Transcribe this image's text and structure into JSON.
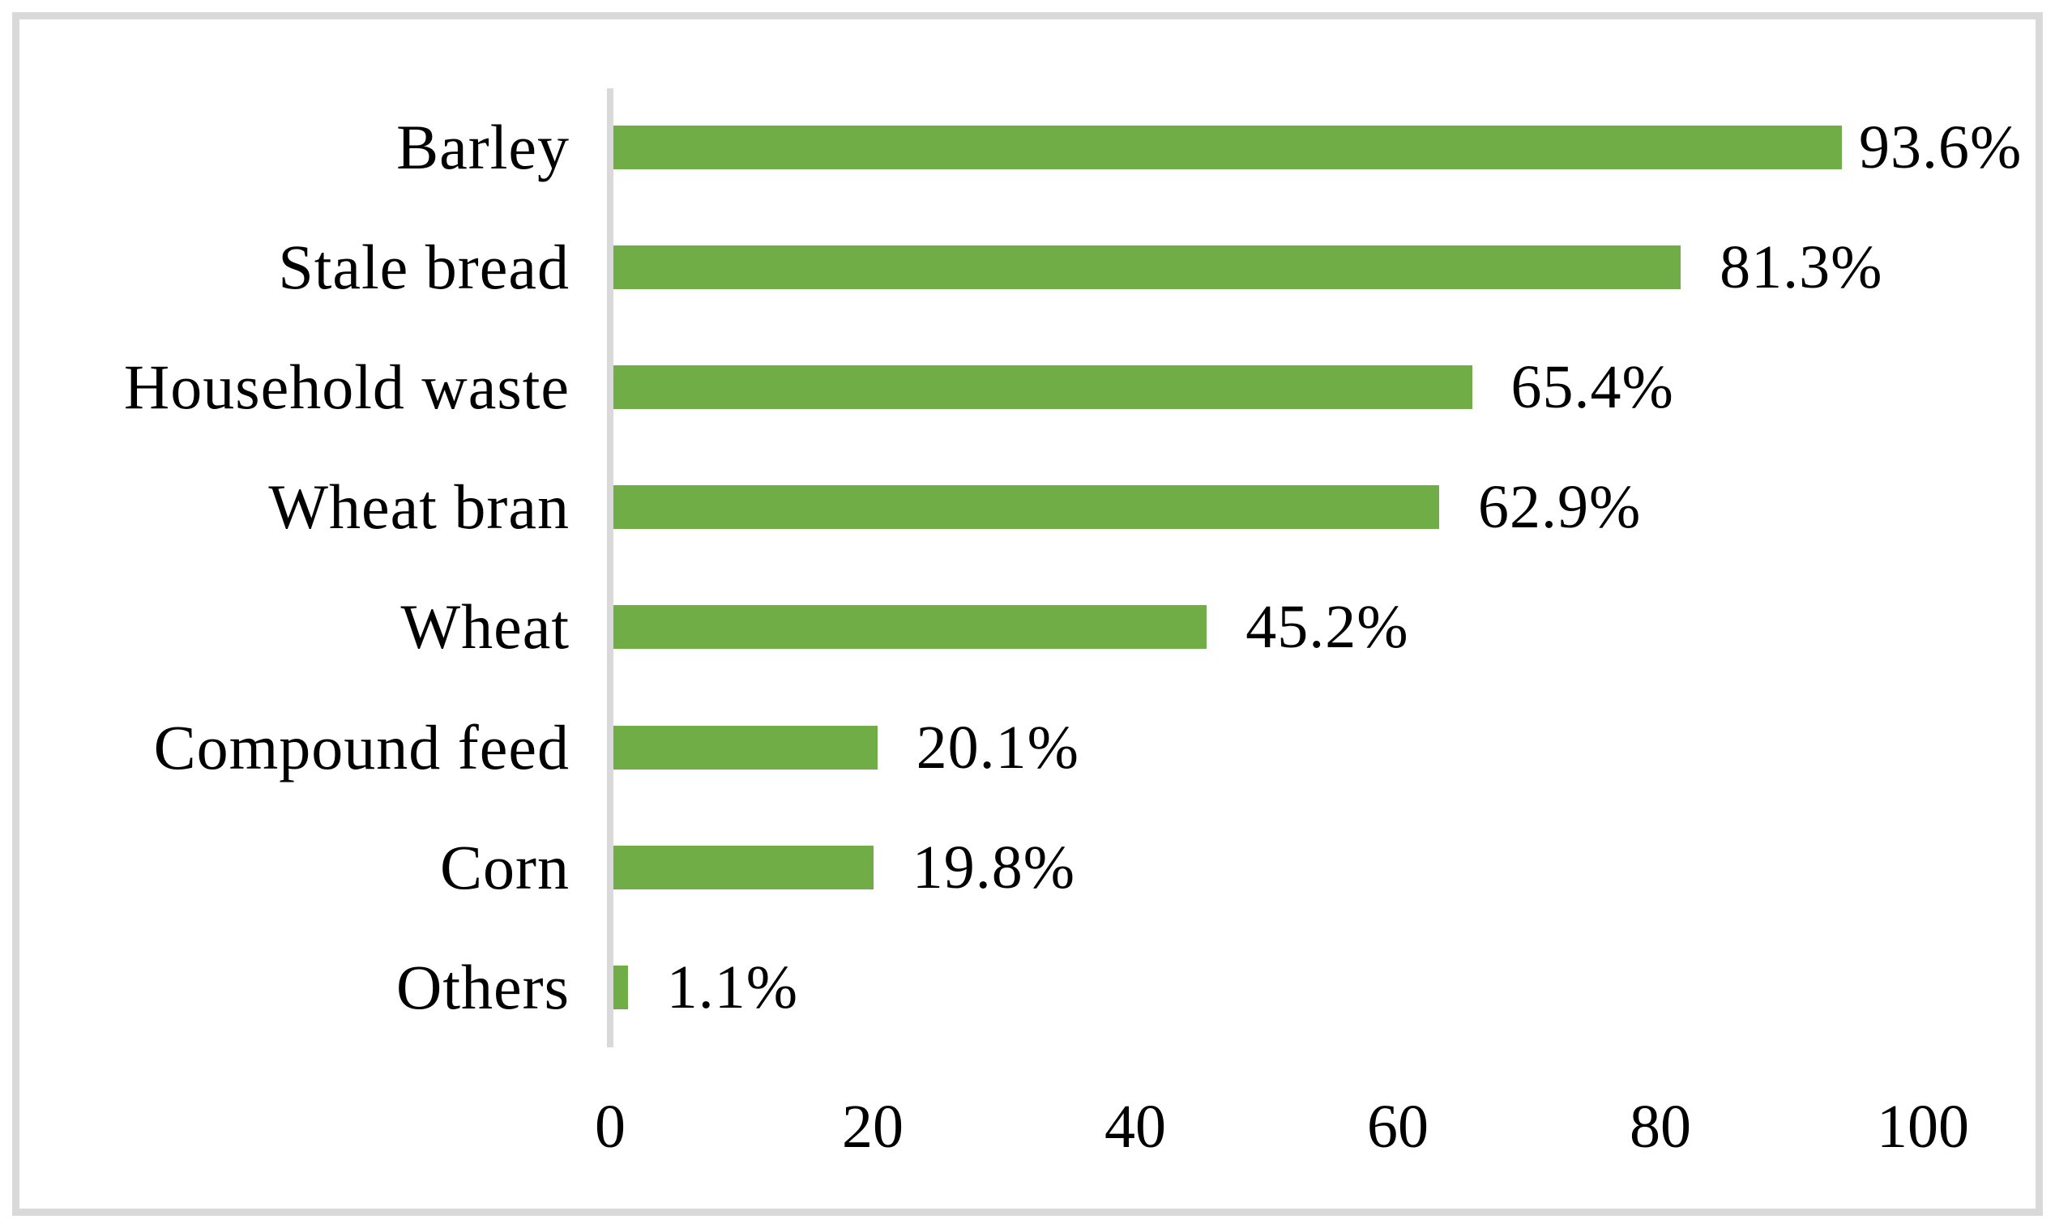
{
  "chart_data": {
    "type": "bar",
    "orientation": "horizontal",
    "title": "",
    "xlabel": "",
    "ylabel": "",
    "categories": [
      "Barley",
      "Stale bread",
      "Household waste",
      "Wheat bran",
      "Wheat",
      "Compound feed",
      "Corn",
      "Others"
    ],
    "values": [
      93.6,
      81.3,
      65.4,
      62.9,
      45.2,
      20.1,
      19.8,
      1.1
    ],
    "data_labels": [
      "93.6%",
      "81.3%",
      "65.4%",
      "62.9%",
      "45.2%",
      "20.1%",
      "19.8%",
      "1.1%"
    ],
    "x_ticks": [
      "0",
      "20",
      "40",
      "60",
      "80",
      "100"
    ],
    "xlim": [
      0,
      100
    ],
    "grid": false,
    "legend": false,
    "bar_color": "#70ad47",
    "axis_line_color": "#d9d9d9",
    "frame_color": "#d9d9d9",
    "text_color": "#000000",
    "background_color": "#ffffff"
  }
}
